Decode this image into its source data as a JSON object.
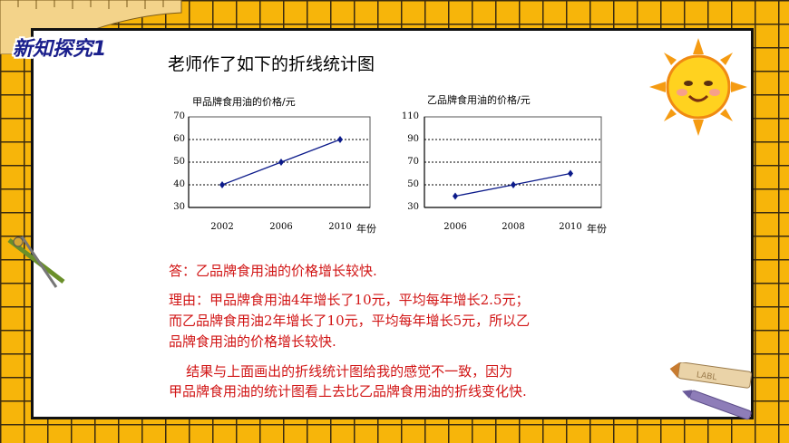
{
  "header": {
    "badge": "新知探究1",
    "subtitle": "老师作了如下的折线统计图"
  },
  "chart_data": [
    {
      "type": "line",
      "title": "甲品牌食用油的价格/元",
      "x": [
        "2002",
        "2006",
        "2010"
      ],
      "xunit": "年份",
      "series": [
        {
          "values": [
            40,
            50,
            60
          ]
        }
      ],
      "yticks": [
        "70",
        "60",
        "50",
        "40",
        "30"
      ],
      "ylim": [
        30,
        70
      ],
      "grid": true,
      "color": "#0b1a8a"
    },
    {
      "type": "line",
      "title": "乙品牌食用油的价格/元",
      "x": [
        "2006",
        "2008",
        "2010"
      ],
      "xunit": "年份",
      "series": [
        {
          "values": [
            40,
            50,
            60
          ]
        }
      ],
      "yticks": [
        "110",
        "90",
        "70",
        "50",
        "30"
      ],
      "ylim": [
        30,
        110
      ],
      "grid": true,
      "color": "#0b1a8a"
    }
  ],
  "answer": {
    "line1": "答：乙品牌食用油的价格增长较快.",
    "reason1": "理由：甲品牌食用油4年增长了10元，平均每年增长2.5元；",
    "reason2": "而乙品牌食用油2年增长了10元，平均每年增长5元，所以乙",
    "reason3": "品牌食用油的价格增长较快.",
    "conclusion1": "    结果与上面画出的折线统计图给我的感觉不一致，因为",
    "conclusion2": "甲品牌食用油的统计图看上去比乙品牌食用油的折线变化快."
  },
  "decorations": {
    "crayon_label": "LABL",
    "colors": {
      "background": "#f7b50a",
      "accent": "#d11414",
      "line": "#0b1a8a"
    }
  }
}
